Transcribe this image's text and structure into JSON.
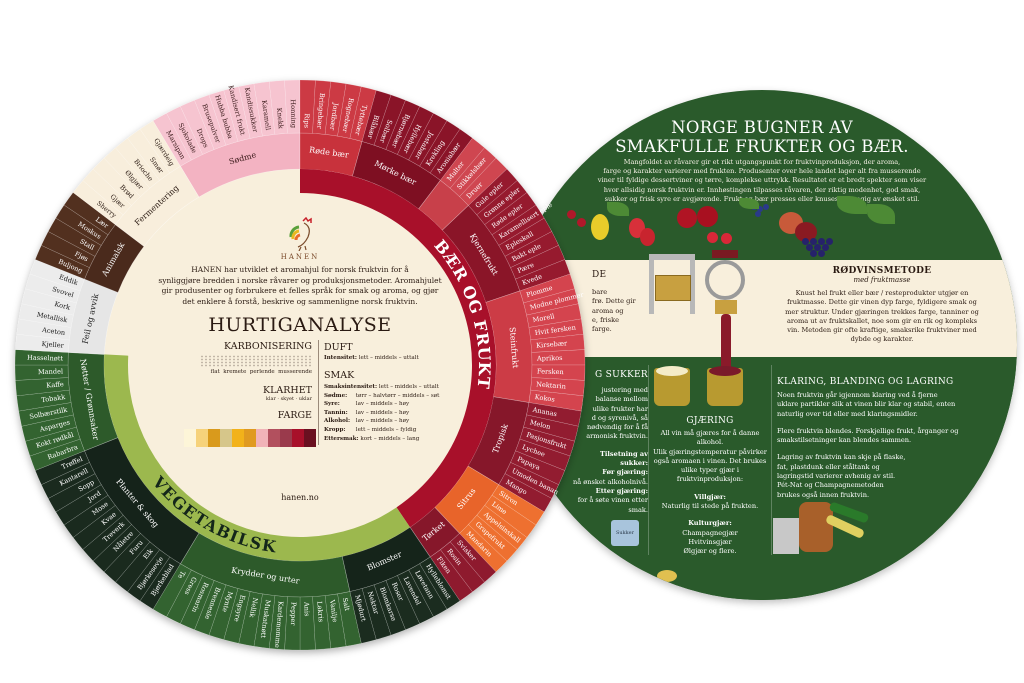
{
  "right_disc": {
    "title_lines": [
      "NORGE BUGNER AV",
      "SMAKFULLE FRUKTER OG BÆR."
    ],
    "intro_lines": [
      "Mangfoldet av råvarer gir et rikt utgangspunkt for fruktvinproduksjon, der aroma,",
      "farge og karakter varierer med frukten. Produsenter over hele landet lager alt fra musserende",
      "viner til fyldige dessertviner og tørre, komplekse uttrykk. Resultatet er et bredt spekter som viser",
      "hvor allsidig norsk fruktvin er. Innhøstingen tilpasses råvaren, der riktig modenhet, god smak,",
      "sukker og frisk syre er avgjørende. Frukt og bær presses eller knuses avhengig av ønsket stil."
    ],
    "left_top": {
      "heading_fragment": "DE",
      "lines": [
        "bare",
        "frø. Dette gir",
        "aroma og",
        "e, friske",
        "farge."
      ]
    },
    "rodvin": {
      "heading": "RØDVINSMETODE",
      "subtitle": "med fruktmasse",
      "lines": [
        "Knust hel frukt eller bær / resteprodukter utgjør en",
        "fruktmasse. Dette gir vinen dyp farge, fyldigere smak og",
        "mer struktur. Under gjæringen trekkes farge, tanniner og",
        "aroma ut av fruktskallet, noe som gir en rik og kompleks",
        "vin. Metoden gir ofte kraftige, smaksrike fruktviner med",
        "dybde og karakter."
      ]
    },
    "sukker": {
      "heading_fragment": "G SUKKER",
      "lines": [
        "justering med",
        "balanse mellom",
        "ulike frukter har",
        "d og syrenivå, så",
        "nødvendig for å få",
        "armonisk fruktvin."
      ],
      "lines2": [
        "Tilsetning av sukker:",
        "Før gjæring:",
        "nå ønsket alkoholnivå.",
        "Etter gjæring:",
        "for å søte vinen etter smak."
      ],
      "bag_label": "Sukker"
    },
    "gjaring": {
      "heading": "GJÆRING",
      "lines": [
        "All vin må gjæres for å danne alkohol.",
        "Ulik gjæringstemperatur påvirker",
        "også aromaen i vinen. Det brukes",
        "ulike typer gjær i fruktvinproduksjon:"
      ],
      "villgjaer_title": "Villgjær:",
      "villgjaer_text": "Naturlig til stede på frukten.",
      "kultur_title": "Kulturgjær:",
      "kultur_lines": [
        "Champagnegjær",
        "Hvitvinsgjær",
        "Ølgjær og flere."
      ]
    },
    "klaring": {
      "heading": "KLARING, BLANDING OG LAGRING",
      "p1": [
        "Noen fruktvin går igjennom klaring ved å fjerne",
        "uklare partikler slik at vinen blir klar og stabil, enten",
        "naturlig over tid eller med klaringsmidler."
      ],
      "p2": [
        "Flere fruktvin blendes. Forskjellige frukt, årganger og",
        "smakstilsetninger kan blendes sammen."
      ],
      "p3": [
        "Lagring av fruktvin kan skje på flaske,",
        "fat, plastdunk eller ståltank og",
        "lagringstid varierer avhenig av stil.",
        "Pét-Nat og Champagnemetoden",
        "brukes også innen fruktvin."
      ]
    }
  },
  "center": {
    "brand": "HANEN",
    "intro_lines": [
      "HANEN har utviklet et aromahjul for norsk fruktvin for å",
      "synliggjøre bredden i norske råvarer og produksjonsmetoder. Aromahjulet",
      "gir produsenter og forbrukere et felles språk for smak og aroma, og gjør",
      "det enklere å forstå, beskrive og sammenligne norsk fruktvin."
    ],
    "title": "HURTIGANALYSE",
    "karbonisering": {
      "label": "KARBONISERING",
      "scale": "flat  kremete  perlende  musserende"
    },
    "klarhet": {
      "label": "KLARHET",
      "scale": "klar · skyet · uklar"
    },
    "farge": {
      "label": "FARGE",
      "swatches": [
        "#fdf5d8",
        "#f6d27a",
        "#d99a1c",
        "#d6c68a",
        "#f2b21a",
        "#e09a20",
        "#f1b3b8",
        "#b2505e",
        "#9a3a4c",
        "#a8102a",
        "#6a1020"
      ]
    },
    "duft": {
      "label": "DUFT",
      "rows": [
        {
          "k": "Intensitet:",
          "v": "lett – middels – uttalt"
        }
      ]
    },
    "smak": {
      "label": "SMAK",
      "rows": [
        {
          "k": "Smaksintensitet:",
          "v": "lett – middels – uttalt"
        },
        {
          "k": "Sødme:",
          "v": "tørr – halvtørr – middels – søt"
        },
        {
          "k": "Syre:",
          "v": "lav – middels – høy"
        },
        {
          "k": "Tannin:",
          "v": "lav – middels – høy"
        },
        {
          "k": "Alkohol:",
          "v": "lav – middels – høy"
        },
        {
          "k": "Kropp:",
          "v": "lett – middels – fyldig"
        },
        {
          "k": "Ettersmak:",
          "v": "kort – middels – lang"
        }
      ]
    },
    "website": "hanen.no"
  },
  "wheel": {
    "bands": {
      "frukt": {
        "label": "BÆR OG FRUKT",
        "color": "#a8102a"
      },
      "veg": {
        "label": "VEGETABILSK",
        "color": "#9cb84e"
      }
    },
    "groups": [
      {
        "name": "Sødme",
        "band": null,
        "color": "#f3b3c2",
        "item_color": "#f6c4d0",
        "text": "#3a1a1a",
        "items": [
          "Marsipan",
          "Sjokolade",
          "Drops",
          "Brusepulver",
          "Hubba bubba",
          "Kandisert frukt",
          "Kandissukker",
          "Karamell",
          "Knekk",
          "Honning"
        ]
      },
      {
        "name": "Røde bær",
        "band": "frukt",
        "color": "#c8323c",
        "item_color": "#cc3a44",
        "text": "#fff",
        "items": [
          "Rips",
          "Bringebær",
          "Jordbær",
          "Rognebær",
          "Tyttebær"
        ]
      },
      {
        "name": "Mørke bær",
        "band": "frukt",
        "color": "#7e0f22",
        "item_color": "#8a1428",
        "text": "#fff",
        "items": [
          "Blåbær",
          "Solbær",
          "Bjørnebær",
          "Hyllebær",
          "Jostabær",
          "Krekling",
          "Aroniabær"
        ]
      },
      {
        "name": "",
        "band": "frukt",
        "color": "#c8404a",
        "item_color": "#cf4650",
        "text": "#fff",
        "items": [
          "Multer",
          "Stikkelsbær",
          "Druer"
        ]
      },
      {
        "name": "Kjernefrukt",
        "band": "frukt",
        "color": "#8a1528",
        "item_color": "#961a2e",
        "text": "#fff",
        "items": [
          "Gule epler",
          "Grønne epler",
          "Røde epler",
          "Karamellisert eple",
          "Epleskall",
          "Bakt eple",
          "Pære",
          "Kvede"
        ]
      },
      {
        "name": "Steinfrukt",
        "band": "frukt",
        "color": "#cc3c46",
        "item_color": "#d4444e",
        "text": "#fff",
        "items": [
          "Plomme",
          "Modne plommer",
          "Morell",
          "Hvit fersken",
          "Kirsebær",
          "Aprikos",
          "Fersken",
          "Nektarin",
          "Kokos"
        ]
      },
      {
        "name": "Tropisk",
        "band": "frukt",
        "color": "#86172a",
        "item_color": "#921c30",
        "text": "#fff",
        "items": [
          "Ananas",
          "Melon",
          "Pasjonsfrukt",
          "Lychee",
          "Papaya",
          "Umoden banan",
          "Mango"
        ]
      },
      {
        "name": "Sitrus",
        "band": "frukt",
        "color": "#e8642a",
        "item_color": "#ee7030",
        "text": "#fff",
        "items": [
          "Sitron",
          "Lime",
          "Appelsinskall",
          "Grapefrukt",
          "Mandarin"
        ]
      },
      {
        "name": "Tørket",
        "band": "frukt",
        "color": "#86172a",
        "item_color": "#8e1a2e",
        "text": "#fff",
        "items": [
          "Svisker",
          "Rosin",
          "Fiken"
        ]
      },
      {
        "name": "Blomster",
        "band": "veg",
        "color": "#15241a",
        "item_color": "#1b2c1f",
        "text": "#fff",
        "items": [
          "Hylleblomst",
          "Løvetann",
          "Lavendel",
          "Roser",
          "Blomkarse",
          "Nektar",
          "Mjødurt"
        ]
      },
      {
        "name": "Krydder og urter",
        "band": "veg",
        "color": "#2d5a2a",
        "item_color": "#336330",
        "text": "#fff",
        "items": [
          "Salt",
          "Vanilje",
          "Lakris",
          "Anis",
          "Pepper",
          "Kardemomme",
          "Muskatnøtt",
          "Nellik",
          "Engsyre",
          "Mynte",
          "Brennesle",
          "Rosmarin",
          "Gress",
          "Te"
        ]
      },
      {
        "name": "Planter & skog",
        "band": "veg",
        "color": "#15231a",
        "item_color": "#1a2a1e",
        "text": "#fff",
        "items": [
          "Bjørkeblad",
          "Bjørkesevje",
          "Eik",
          "Furu",
          "Nåletre",
          "Treverk",
          "Kvae",
          "Mose",
          "Jord",
          "Sopp",
          "Kantarell",
          "Trøffel"
        ]
      },
      {
        "name": "Nøtter / Grønnsaker",
        "band": "veg",
        "color": "#2d5a2a",
        "item_color": "#336330",
        "text": "#fff",
        "items": [
          "Rabarbra",
          "Kokt rødkål",
          "Asparges",
          "Solbærstilk",
          "Tobakk",
          "Kaffe",
          "Mandel",
          "Hasselnøtt"
        ]
      },
      {
        "name": "Feil og avvik",
        "band": null,
        "color": "#e6e6e6",
        "item_color": "#ececec",
        "text": "#1a1a1a",
        "items": [
          "Kjeller",
          "Aceton",
          "Metallisk",
          "Kork",
          "Svovel",
          "Eddik"
        ]
      },
      {
        "name": "Animalsk",
        "band": null,
        "color": "#4a2a1c",
        "item_color": "#52301f",
        "text": "#fff",
        "items": [
          "Buljong",
          "Fjøs",
          "Stall",
          "Moskus",
          "Lær"
        ]
      },
      {
        "name": "Fermentering",
        "band": null,
        "color": "#f8eedc",
        "item_color": "#f8eedc",
        "text": "#2a1a12",
        "items": [
          "Sherry",
          "Gjær",
          "Brød",
          "Ølgjær",
          "Brioche",
          "Smør",
          "Gjærdeig"
        ]
      }
    ]
  },
  "colors": {
    "cream": "#f8efdc",
    "disc_green": "#2a5a2b"
  }
}
